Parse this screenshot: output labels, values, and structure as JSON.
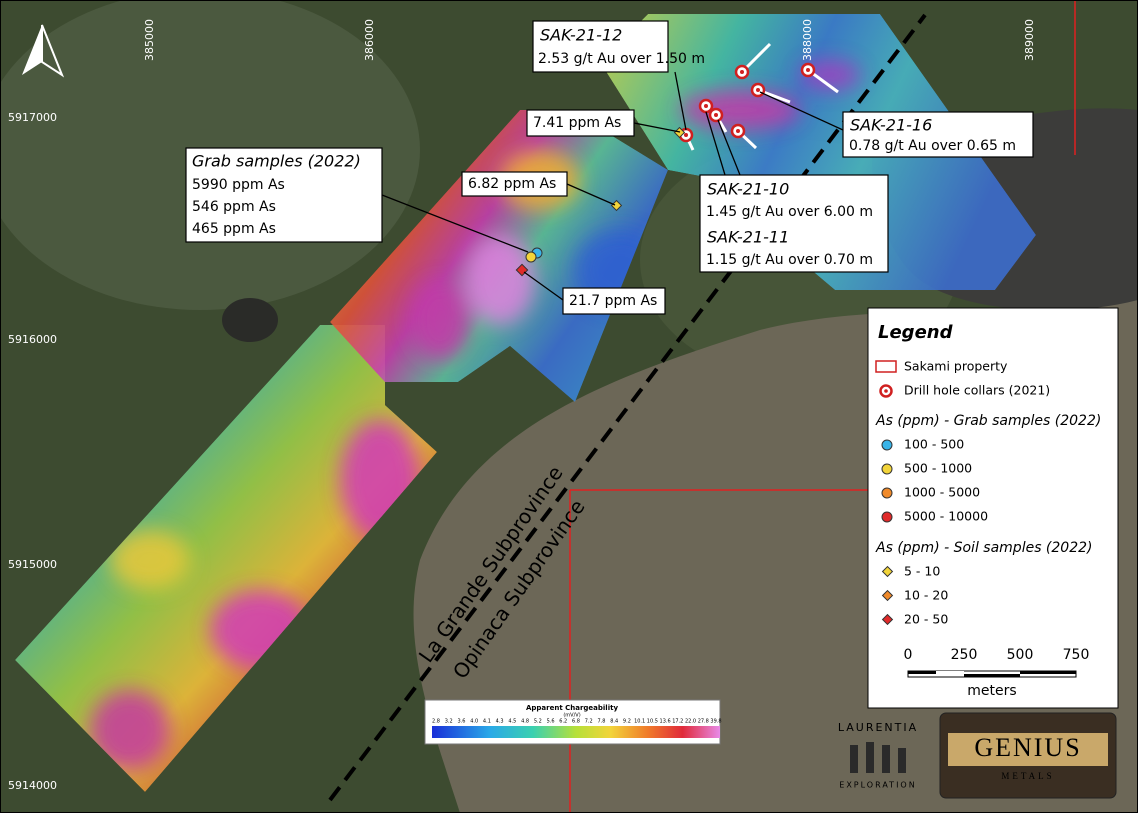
{
  "grid": {
    "eastings": [
      "385000",
      "386000",
      "388000",
      "389000"
    ],
    "northings": [
      "5917000",
      "5916000",
      "5915000",
      "5914000"
    ]
  },
  "callouts": {
    "sak_21_12": {
      "title": "SAK-21-12",
      "text": "2.53 g/t Au over 1.50 m"
    },
    "soil_741": "7.41 ppm As",
    "grab": {
      "title": "Grab samples (2022)",
      "lines": [
        "5990 ppm As",
        "546 ppm As",
        "465 ppm As"
      ]
    },
    "soil_682": "6.82 ppm As",
    "sak_21_10": {
      "title": "SAK-21-10",
      "text": "1.45 g/t Au over 6.00 m"
    },
    "sak_21_11": {
      "title": "SAK-21-11",
      "text": "1.15 g/t Au over 0.70 m"
    },
    "sak_21_16": {
      "title": "SAK-21-16",
      "text": "0.78 g/t Au over 0.65 m"
    },
    "soil_217": "21.7 ppm As"
  },
  "boundary_labels": [
    "La Grande Subprovince",
    "Opinaca Subprovince"
  ],
  "legend": {
    "title": "Legend",
    "items": [
      "Sakami property",
      "Drill hole collars (2021)"
    ],
    "grab_heading": "As (ppm) - Grab samples (2022)",
    "grab_classes": [
      "100 - 500",
      "500 - 1000",
      "1000 - 5000",
      "5000 - 10000"
    ],
    "soil_heading": "As (ppm) - Soil samples (2022)",
    "soil_classes": [
      "5 - 10",
      "10 - 20",
      "20 - 50"
    ],
    "scale_ticks": [
      "0",
      "250",
      "500",
      "750"
    ],
    "scale_unit": "meters"
  },
  "colorbar": {
    "title": "Apparent Chargeability",
    "unit": "(mV/V)",
    "ticks": [
      "2.8",
      "3.2",
      "3.6",
      "4.0",
      "4.1",
      "4.3",
      "4.5",
      "4.8",
      "5.2",
      "5.6",
      "6.2",
      "6.8",
      "7.2",
      "7.8",
      "8.4",
      "9.2",
      "10.1",
      "10.5",
      "13.6",
      "17.2",
      "22.0",
      "27.8",
      "39.8"
    ]
  },
  "logos": {
    "laurentia": [
      "LAURENTIA",
      "EXPLORATION"
    ],
    "genius": [
      "GENIUS",
      "METALS"
    ]
  }
}
